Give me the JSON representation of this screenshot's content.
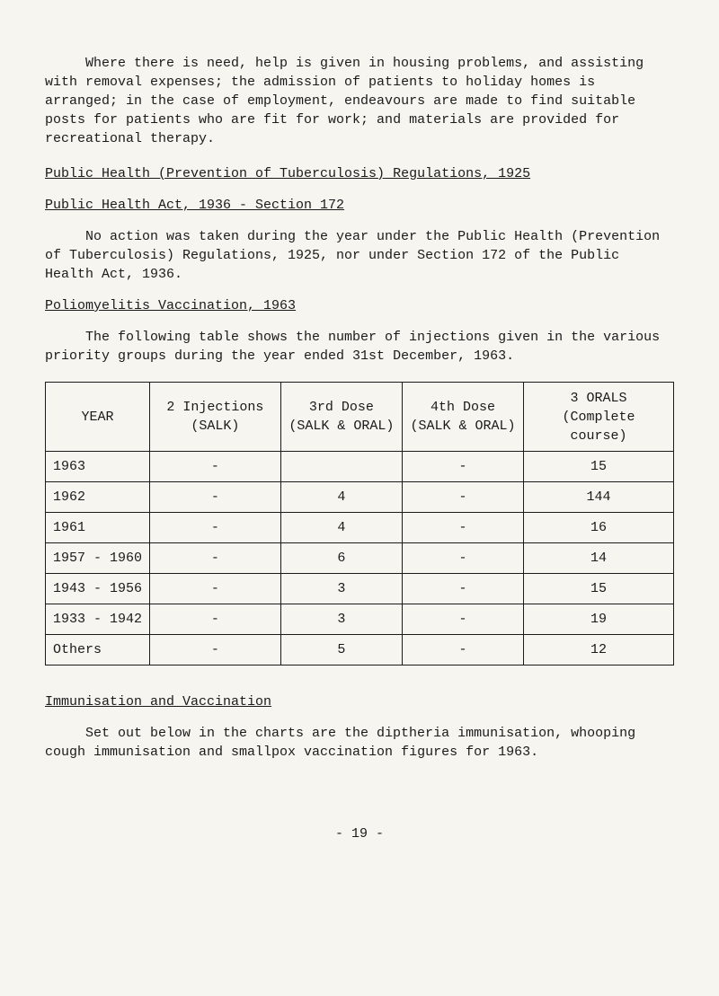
{
  "para1": "Where there is need, help is given in housing problems, and assisting with removal expenses; the admission of patients to holiday homes is arranged; in the case of employment, endeavours are made to find suitable posts for patients who are fit for work; and materials are provided for recreational therapy.",
  "heading1": "Public Health (Prevention of Tuberculosis) Regulations, 1925",
  "heading2": "Public Health Act, 1936 - Section 172",
  "para2": "No action was taken during the year under the Public Health (Prevention of Tuberculosis) Regulations, 1925, nor under Section 172 of the Public Health Act, 1936.",
  "heading3": "Poliomyelitis Vaccination, 1963",
  "para3": "The following table shows the number of injections given in the various priority groups during the year ended 31st December, 1963.",
  "table": {
    "headers": {
      "year": "YEAR",
      "col1": "2 Injections (SALK)",
      "col2": "3rd Dose (SALK & ORAL)",
      "col3": "4th Dose (SALK & ORAL)",
      "col4": "3 ORALS (Complete course)"
    },
    "rows": [
      {
        "year": "1963",
        "c1": "-",
        "c2": "",
        "c3": "-",
        "c4": "15"
      },
      {
        "year": "1962",
        "c1": "-",
        "c2": "4",
        "c3": "-",
        "c4": "144"
      },
      {
        "year": "1961",
        "c1": "-",
        "c2": "4",
        "c3": "-",
        "c4": "16"
      },
      {
        "year": "1957 - 1960",
        "c1": "-",
        "c2": "6",
        "c3": "-",
        "c4": "14"
      },
      {
        "year": "1943 - 1956",
        "c1": "-",
        "c2": "3",
        "c3": "-",
        "c4": "15"
      },
      {
        "year": "1933 - 1942",
        "c1": "-",
        "c2": "3",
        "c3": "-",
        "c4": "19"
      },
      {
        "year": "Others",
        "c1": "-",
        "c2": "5",
        "c3": "-",
        "c4": "12"
      }
    ]
  },
  "heading4": "Immunisation and Vaccination",
  "para4": "Set out below in the charts are the diptheria immunisation, whooping cough immunisation and smallpox vaccination figures for 1963.",
  "pagenum": "- 19 -"
}
